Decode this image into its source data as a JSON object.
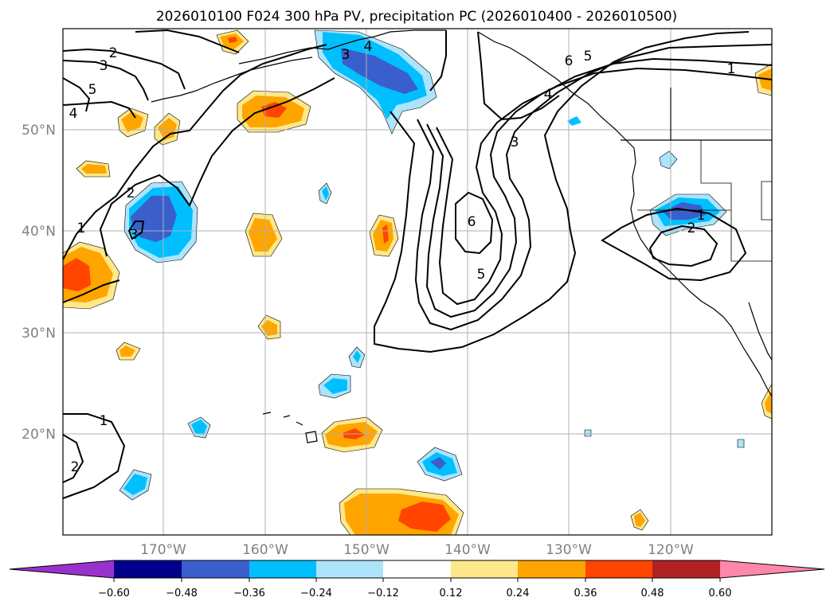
{
  "title": "2026010100 F024 300 hPa PV, precipitation PC (2026010400 - 2026010500)",
  "map": {
    "lat_labels": [
      "50°N",
      "40°N",
      "30°N",
      "20°N"
    ],
    "lon_labels": [
      "170°W",
      "160°W",
      "150°W",
      "140°W",
      "130°W",
      "120°W"
    ],
    "gridline_color": "#b0b0b0",
    "axis_label_color": "#808080"
  },
  "contours": {
    "quantity": "300 hPa PV",
    "color": "#000000",
    "labels": [
      {
        "text": "2",
        "id": "c2-nw"
      },
      {
        "text": "3",
        "id": "c3-nw"
      },
      {
        "text": "4",
        "id": "c4-nw"
      },
      {
        "text": "5",
        "id": "c5-nw"
      },
      {
        "text": "2",
        "id": "c2-w"
      },
      {
        "text": "3",
        "id": "c3-w"
      },
      {
        "text": "1",
        "id": "c1-w"
      },
      {
        "text": "3",
        "id": "c3-gulf"
      },
      {
        "text": "4",
        "id": "c4-gulf"
      },
      {
        "text": "6",
        "id": "c6-bc"
      },
      {
        "text": "5",
        "id": "c5-bc"
      },
      {
        "text": "4",
        "id": "c4-bc"
      },
      {
        "text": "1",
        "id": "c1-ne"
      },
      {
        "text": "3",
        "id": "c3-trough"
      },
      {
        "text": "6",
        "id": "c6-trough"
      },
      {
        "text": "5",
        "id": "c5-trough"
      },
      {
        "text": "1",
        "id": "c1-ca"
      },
      {
        "text": "2",
        "id": "c2-ca"
      },
      {
        "text": "1",
        "id": "c1-sw"
      },
      {
        "text": "2",
        "id": "c2-sw"
      }
    ]
  },
  "colorbar": {
    "quantity": "precipitation PC",
    "colors": [
      "#9932CC",
      "#00008B",
      "#3A5FCD",
      "#00BFFF",
      "#ADE4FC",
      "#FFFFFF",
      "#FFE88A",
      "#FFA500",
      "#FF4500",
      "#B22222",
      "#FF88AA"
    ],
    "ticks": [
      "−0.60",
      "−0.48",
      "−0.36",
      "−0.24",
      "−0.12",
      "0.12",
      "0.24",
      "0.36",
      "0.48",
      "0.60"
    ]
  },
  "legend_colors": {
    "pos_1": "#FFE88A",
    "pos_2": "#FFA500",
    "pos_3": "#FF4500",
    "neg_1": "#ADE4FC",
    "neg_2": "#00BFFF",
    "neg_3": "#3A5FCD"
  }
}
